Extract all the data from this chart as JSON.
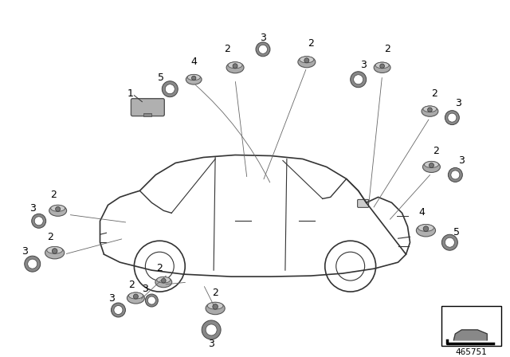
{
  "title": "",
  "background_color": "#ffffff",
  "part_number": "465751",
  "car_outline_color": "#333333",
  "car_fill_color": "#ffffff",
  "part_color": "#aaaaaa",
  "part_color_dark": "#888888",
  "text_color": "#000000",
  "line_color": "#555555",
  "box_border_color": "#000000",
  "figsize": [
    6.4,
    4.48
  ],
  "dpi": 100
}
